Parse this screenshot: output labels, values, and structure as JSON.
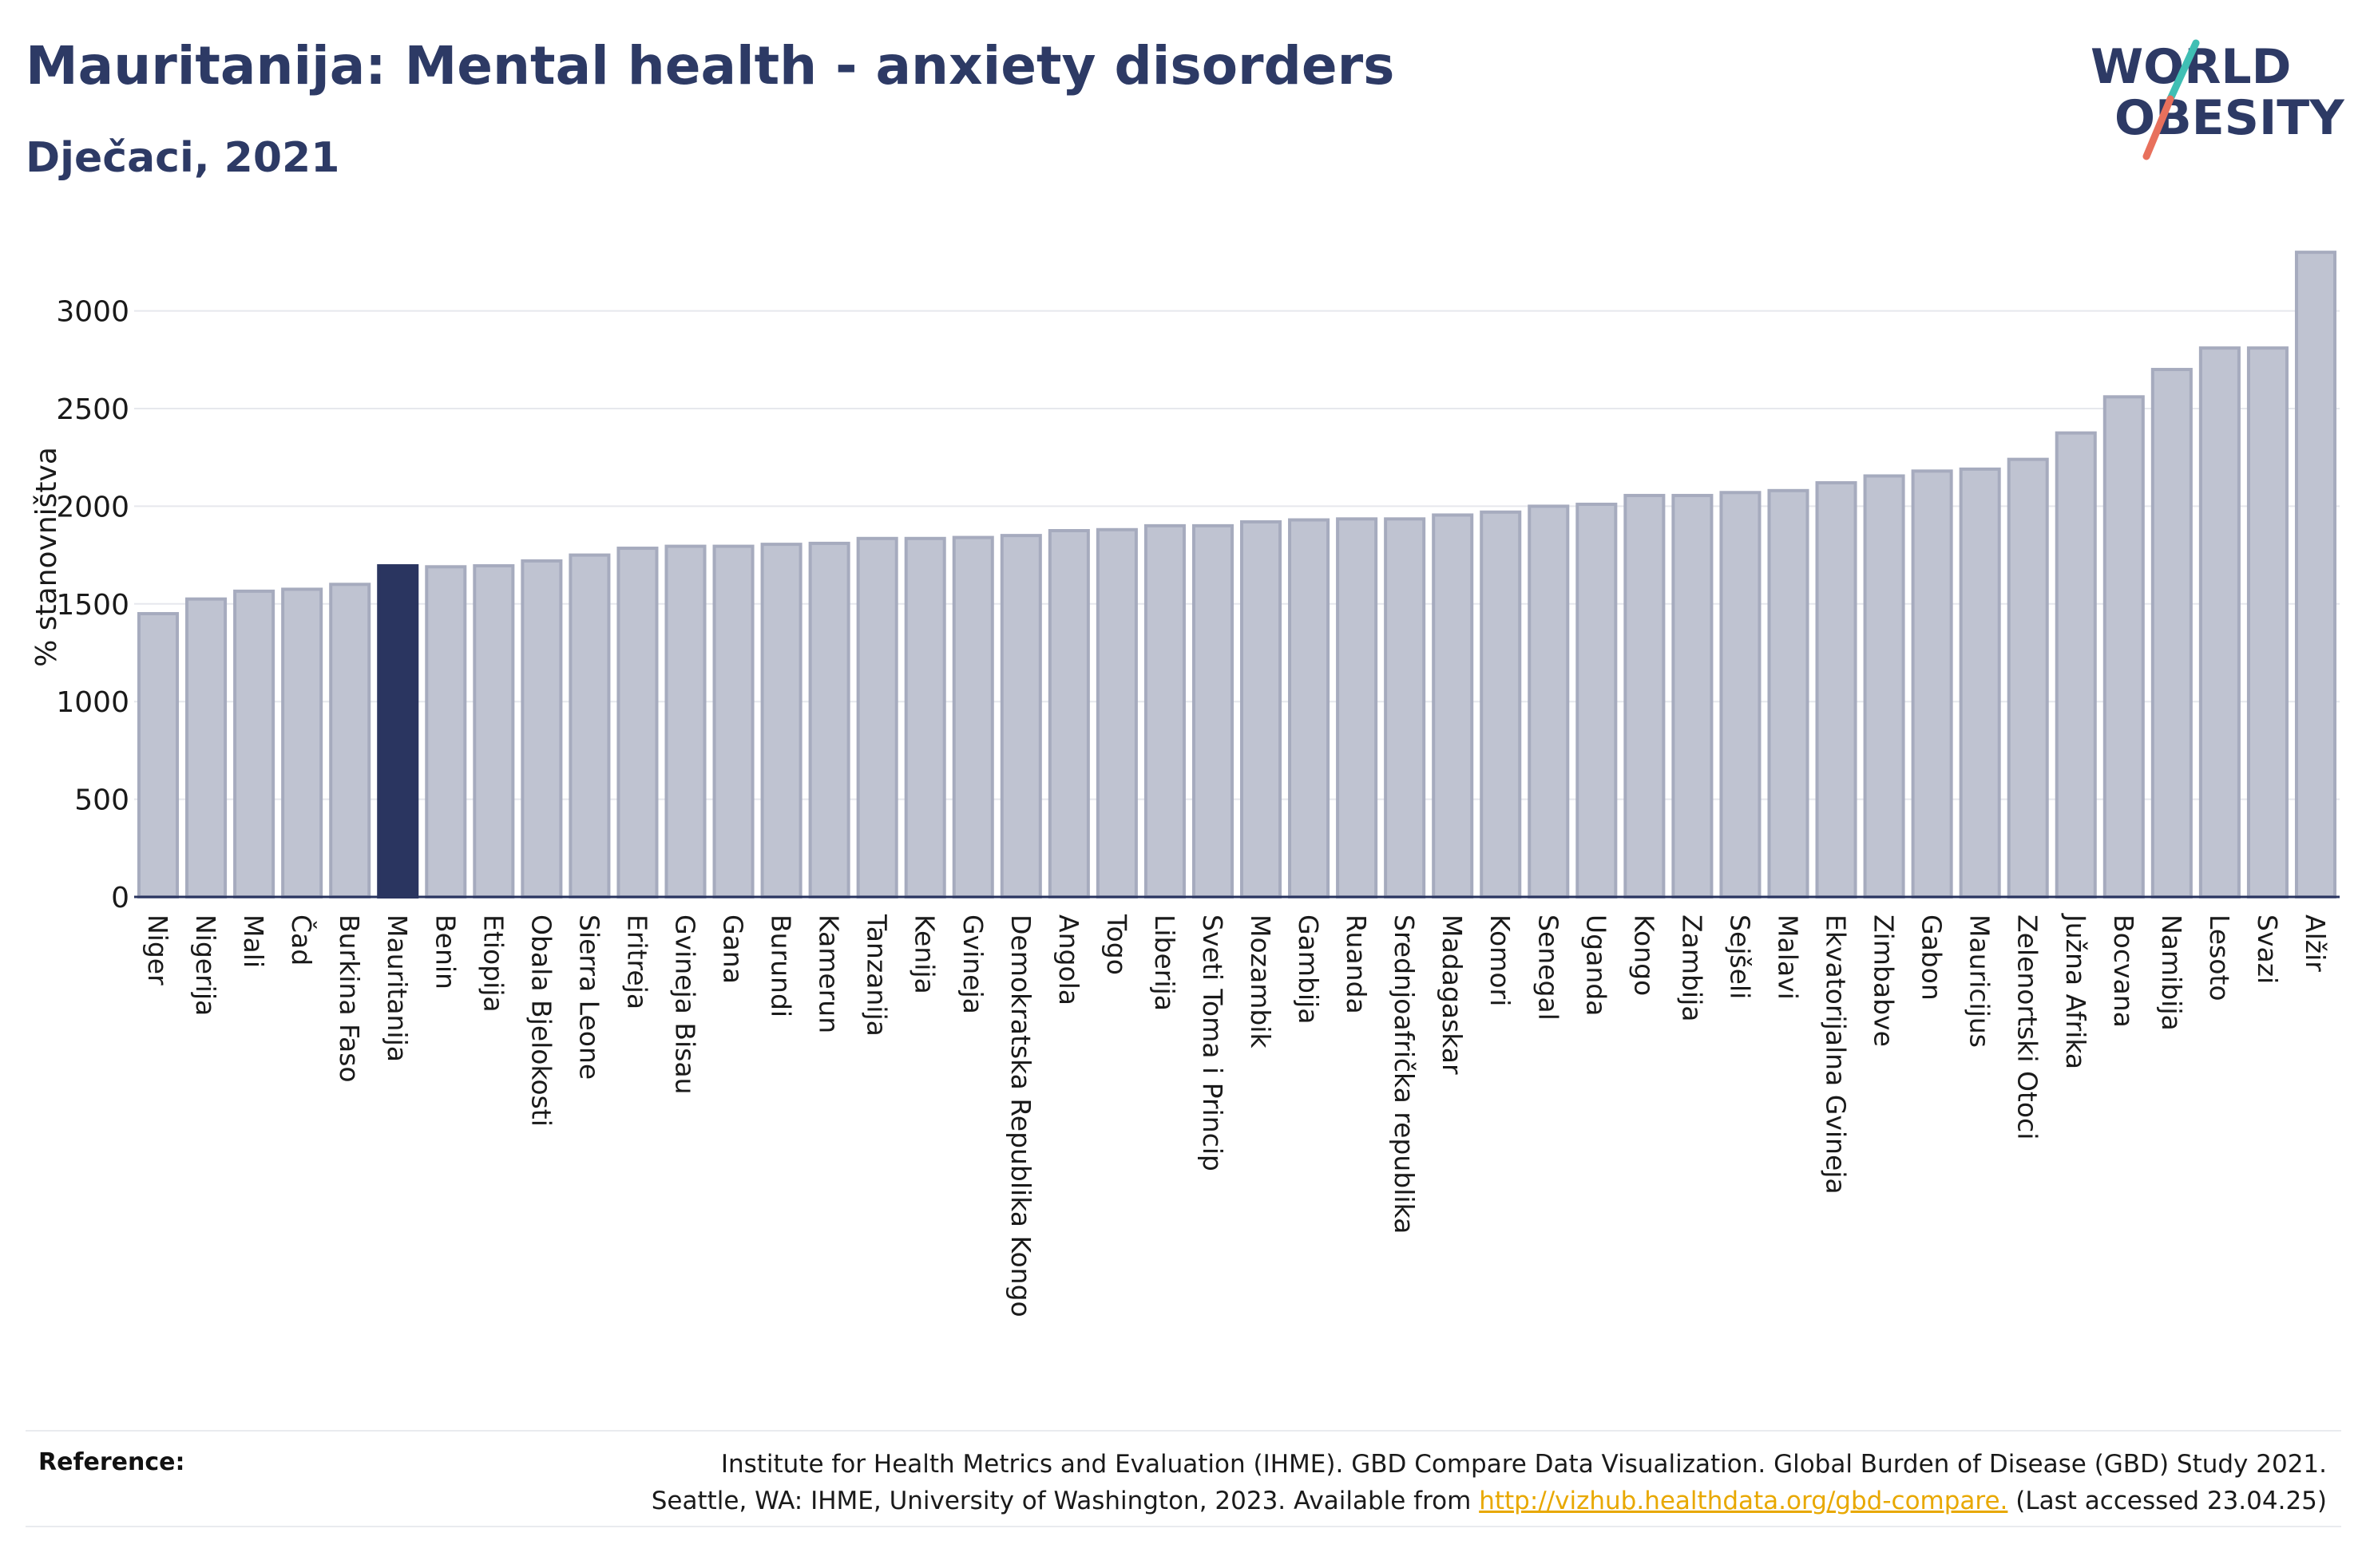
{
  "header": {
    "title": "Mauritanija: Mental health - anxiety disorders",
    "subtitle": "Dječaci, 2021"
  },
  "logo": {
    "line1": "WORLD",
    "line2": "OBESITY"
  },
  "colors": {
    "bar": "#bfc3d1",
    "bar_stroke": "#a6abbe",
    "highlight": "#2a3560",
    "axis": "#2a3560",
    "grid": "#e6e8ed",
    "logo_slash_teal": "#3fbfb4",
    "logo_slash_red": "#e8705c"
  },
  "chart_data": {
    "type": "bar",
    "title": "Mauritanija: Mental health - anxiety disorders",
    "subtitle": "Dječaci, 2021",
    "ylabel": "% stanovništva",
    "xlabel": "",
    "ylim": [
      0,
      3350
    ],
    "yticks": [
      0,
      500,
      1000,
      1500,
      2000,
      2500,
      3000
    ],
    "grid": true,
    "highlight": "Mauritanija",
    "categories": [
      "Niger",
      "Nigerija",
      "Mali",
      "Čad",
      "Burkina Faso",
      "Mauritanija",
      "Benin",
      "Etiopija",
      "Obala Bjelokosti",
      "Sierra Leone",
      "Eritreja",
      "Gvineja Bisau",
      "Gana",
      "Burundi",
      "Kamerun",
      "Tanzanija",
      "Kenija",
      "Gvineja",
      "Demokratska Republika Kongo",
      "Angola",
      "Togo",
      "Liberija",
      "Sveti Toma i Princip",
      "Mozambik",
      "Gambija",
      "Ruanda",
      "Srednjoafrička republika",
      "Madagaskar",
      "Komori",
      "Senegal",
      "Uganda",
      "Kongo",
      "Zambija",
      "Sejšeli",
      "Malavi",
      "Ekvatorijalna Gvineja",
      "Zimbabve",
      "Gabon",
      "Mauricijus",
      "Zelenortski Otoci",
      "Južna Afrika",
      "Bocvana",
      "Namibija",
      "Lesoto",
      "Svazi",
      "Alžir"
    ],
    "values": [
      1450,
      1525,
      1565,
      1575,
      1600,
      1695,
      1690,
      1695,
      1720,
      1750,
      1785,
      1795,
      1795,
      1805,
      1810,
      1835,
      1835,
      1840,
      1850,
      1875,
      1880,
      1900,
      1900,
      1920,
      1930,
      1935,
      1935,
      1955,
      1970,
      2000,
      2010,
      2055,
      2055,
      2070,
      2080,
      2120,
      2155,
      2180,
      2190,
      2240,
      2375,
      2560,
      2700,
      2810,
      2810,
      3300
    ]
  },
  "reference": {
    "label": "Reference:",
    "line1": "Institute for Health Metrics and Evaluation (IHME). GBD Compare Data Visualization. Global Burden of Disease (GBD) Study 2021.",
    "line2_pre": "Seattle, WA: IHME, University of Washington, 2023. Available from ",
    "link": "http://vizhub.healthdata.org/gbd-compare.",
    "line2_post": " (Last accessed 23.04.25)"
  }
}
